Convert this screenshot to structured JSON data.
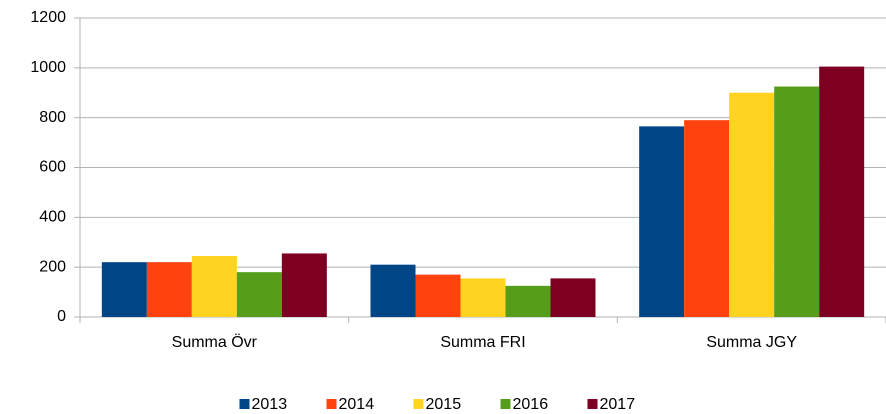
{
  "chart_data": {
    "type": "bar",
    "categories": [
      "Summa Övr",
      "Summa FRI",
      "Summa JGY"
    ],
    "series": [
      {
        "name": "2013",
        "color": "#004586",
        "values": [
          220,
          210,
          765
        ]
      },
      {
        "name": "2014",
        "color": "#ff420e",
        "values": [
          220,
          170,
          790
        ]
      },
      {
        "name": "2015",
        "color": "#ffd320",
        "values": [
          245,
          155,
          900
        ]
      },
      {
        "name": "2016",
        "color": "#579d1c",
        "values": [
          180,
          125,
          925
        ]
      },
      {
        "name": "2017",
        "color": "#7e0021",
        "values": [
          255,
          155,
          1005
        ]
      }
    ],
    "ylim": [
      0,
      1200
    ],
    "yticks": [
      0,
      200,
      400,
      600,
      800,
      1000,
      1200
    ],
    "grid": true,
    "legend": "bottom"
  }
}
